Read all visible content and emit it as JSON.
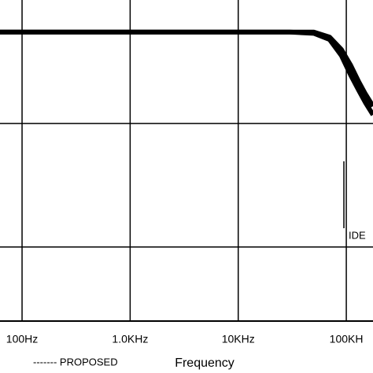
{
  "chart_data": {
    "type": "line",
    "x_label": "Frequency",
    "annotation": "IDE",
    "xscale": "log",
    "xlim": [
      62.5,
      176600
    ],
    "ylim": [
      -26,
      0
    ],
    "xticks": [
      {
        "value": 100,
        "label": "100Hz"
      },
      {
        "value": 1000,
        "label": "1.0KHz"
      },
      {
        "value": 10000,
        "label": "10KHz"
      },
      {
        "value": 100000,
        "label": "100KH"
      }
    ],
    "yticks": [
      -10,
      -20
    ],
    "grid": true,
    "x": [
      62.5,
      100,
      1000,
      10000,
      30000,
      50000,
      70000,
      90000,
      110000,
      130000,
      150000,
      176600
    ],
    "series": [
      {
        "name": "------- PROPOSED",
        "color": "#000000",
        "values": [
          -2.6,
          -2.6,
          -2.6,
          -2.6,
          -2.6,
          -2.7,
          -3.2,
          -4.5,
          -6.1,
          -7.3,
          -8.3,
          -9.3
        ]
      },
      {
        "color": "#000000",
        "values": [
          -2.6,
          -2.6,
          -2.6,
          -2.6,
          -2.6,
          -2.6,
          -3.0,
          -4.0,
          -5.3,
          -6.6,
          -7.6,
          -8.6
        ]
      }
    ]
  }
}
